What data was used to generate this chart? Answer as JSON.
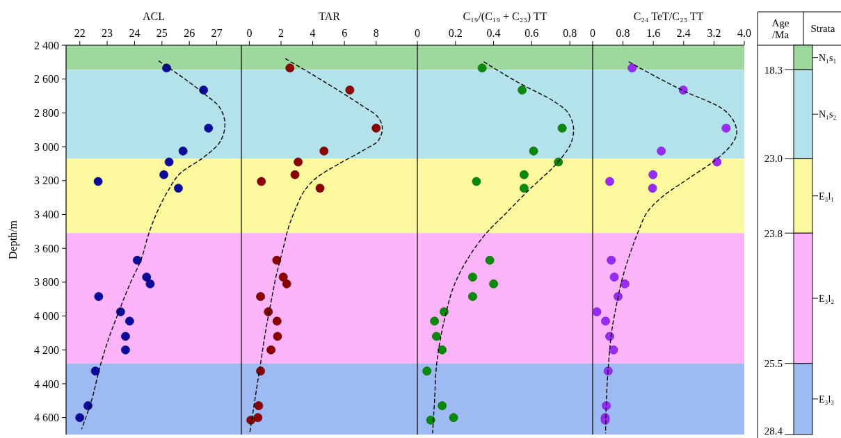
{
  "chart_data": [
    {
      "type": "scatter",
      "xlabel": "ACL",
      "ylabel": "Depth/m",
      "xlim": [
        21.5,
        27.9
      ],
      "xticks": [
        22,
        23,
        24,
        25,
        26,
        27
      ],
      "ylim": [
        4700,
        2400
      ],
      "yticks": [
        {
          "value": 2400,
          "label": "2 400"
        },
        {
          "value": 2600,
          "label": "2 600"
        },
        {
          "value": 2800,
          "label": "2 800"
        },
        {
          "value": 3000,
          "label": "3 000"
        },
        {
          "value": 3200,
          "label": "3 200"
        },
        {
          "value": 3400,
          "label": "3 400"
        },
        {
          "value": 3600,
          "label": "3 600"
        },
        {
          "value": 3800,
          "label": "3 800"
        },
        {
          "value": 4000,
          "label": "4 000"
        },
        {
          "value": 4200,
          "label": "4 200"
        },
        {
          "value": 4400,
          "label": "4 400"
        },
        {
          "value": 4600,
          "label": "4 600"
        }
      ],
      "bands": [
        {
          "axis": "y",
          "from": 2400,
          "to": 2545,
          "color": "#9fd89f"
        },
        {
          "axis": "y",
          "from": 2545,
          "to": 3070,
          "color": "#b4e2ea"
        },
        {
          "axis": "y",
          "from": 3070,
          "to": 3510,
          "color": "#fdf99f"
        },
        {
          "axis": "y",
          "from": 3510,
          "to": 4280,
          "color": "#fbb4f7"
        },
        {
          "axis": "y",
          "from": 4280,
          "to": 4700,
          "color": "#9dbaf2"
        }
      ],
      "series": [
        {
          "color": "#0c0c9c",
          "marker": "circle",
          "x": [
            25.17,
            26.52,
            26.7,
            25.77,
            25.26,
            25.07,
            22.67,
            25.6,
            24.1,
            24.44,
            24.57,
            22.69,
            23.49,
            23.82,
            23.67,
            23.67,
            22.57,
            22.3,
            22.0
          ],
          "values": [
            2535,
            2665,
            2890,
            3025,
            3090,
            3165,
            3205,
            3245,
            3670,
            3770,
            3810,
            3885,
            3975,
            4030,
            4120,
            4200,
            4325,
            4530,
            4600
          ]
        },
        {
          "type": "line",
          "color": "#000000",
          "line_style": "dashed",
          "x": [
            24.89,
            26.55,
            27.1,
            27.3,
            27.15,
            26.5,
            25.71,
            25.22,
            24.82,
            24.52,
            24.23,
            23.83,
            23.44,
            23.04,
            22.74,
            22.45,
            22.07
          ],
          "values": [
            2494,
            2688,
            2766,
            2868,
            2963,
            3065,
            3151,
            3261,
            3387,
            3513,
            3670,
            3811,
            3968,
            4141,
            4298,
            4487,
            4667
          ]
        }
      ]
    },
    {
      "type": "scatter",
      "xlabel": "TAR",
      "tick_labels": "x",
      "xlim": [
        -0.5,
        10.6
      ],
      "xticks": [
        0,
        2,
        4,
        6,
        8
      ],
      "ylim": [
        4700,
        2400
      ],
      "bands": [
        {
          "axis": "y",
          "from": 2400,
          "to": 2545,
          "color": "#9fd89f"
        },
        {
          "axis": "y",
          "from": 2545,
          "to": 3070,
          "color": "#b4e2ea"
        },
        {
          "axis": "y",
          "from": 3070,
          "to": 3510,
          "color": "#fdf99f"
        },
        {
          "axis": "y",
          "from": 3510,
          "to": 4280,
          "color": "#fbb4f7"
        },
        {
          "axis": "y",
          "from": 4280,
          "to": 4700,
          "color": "#9dbaf2"
        }
      ],
      "series": [
        {
          "color": "#8b0000",
          "marker": "circle",
          "x": [
            2.56,
            6.34,
            8.0,
            4.71,
            3.08,
            2.88,
            0.76,
            4.46,
            1.73,
            2.14,
            2.36,
            0.71,
            1.2,
            1.75,
            1.78,
            1.37,
            0.71,
            0.59,
            0.54,
            0.1
          ],
          "values": [
            2535,
            2665,
            2890,
            3025,
            3090,
            3165,
            3205,
            3245,
            3670,
            3770,
            3810,
            3885,
            3975,
            4030,
            4120,
            4200,
            4325,
            4530,
            4600,
            4615
          ]
        },
        {
          "type": "line",
          "color": "#000000",
          "line_style": "dashed",
          "x": [
            2.29,
            4.75,
            7.12,
            8.08,
            8.39,
            8.14,
            7.12,
            5.59,
            4.24,
            3.47,
            2.97,
            2.46,
            2.12,
            1.69,
            1.36,
            1.02,
            0.68,
            0.34,
            0.03
          ],
          "values": [
            2480,
            2617,
            2758,
            2821,
            2892,
            2963,
            3025,
            3104,
            3183,
            3261,
            3355,
            3481,
            3607,
            3764,
            3921,
            4094,
            4298,
            4502,
            4691
          ]
        }
      ]
    },
    {
      "type": "scatter",
      "xlabel": "C₁₉/(C₁₉ + C₂₃) TT",
      "tick_labels": "x",
      "xlim": [
        0,
        0.92
      ],
      "xticks": [
        0,
        0.2,
        0.4,
        0.6,
        0.8
      ],
      "ylim": [
        4700,
        2400
      ],
      "bands": [
        {
          "axis": "y",
          "from": 2400,
          "to": 2545,
          "color": "#9fd89f"
        },
        {
          "axis": "y",
          "from": 2545,
          "to": 3070,
          "color": "#b4e2ea"
        },
        {
          "axis": "y",
          "from": 3070,
          "to": 3510,
          "color": "#fdf99f"
        },
        {
          "axis": "y",
          "from": 3510,
          "to": 4280,
          "color": "#fbb4f7"
        },
        {
          "axis": "y",
          "from": 4280,
          "to": 4700,
          "color": "#9dbaf2"
        }
      ],
      "series": [
        {
          "color": "#0a8a0a",
          "marker": "circle",
          "x": [
            0.34,
            0.55,
            0.76,
            0.61,
            0.74,
            0.56,
            0.31,
            0.56,
            0.38,
            0.29,
            0.4,
            0.29,
            0.14,
            0.09,
            0.1,
            0.13,
            0.05,
            0.13,
            0.19,
            0.07
          ],
          "values": [
            2535,
            2665,
            2890,
            3025,
            3090,
            3165,
            3205,
            3245,
            3670,
            3770,
            3810,
            3885,
            3975,
            4030,
            4120,
            4200,
            4325,
            4530,
            4600,
            4615
          ]
        },
        {
          "type": "line",
          "color": "#000000",
          "line_style": "dashed",
          "x": [
            0.35,
            0.55,
            0.71,
            0.79,
            0.82,
            0.8,
            0.74,
            0.58,
            0.47,
            0.36,
            0.26,
            0.19,
            0.15,
            0.12,
            0.1,
            0.09,
            0.08
          ],
          "values": [
            2499,
            2633,
            2727,
            2798,
            2900,
            2994,
            3088,
            3261,
            3387,
            3513,
            3670,
            3827,
            3984,
            4141,
            4298,
            4502,
            4691
          ]
        }
      ]
    },
    {
      "type": "scatter",
      "xlabel": "C₂₄ TeT/C₂₃ TT",
      "tick_labels": "x",
      "xlim": [
        0,
        4
      ],
      "xticks": [
        0,
        {
          "value": 0.8,
          "label": "0.8"
        },
        {
          "value": 1.6,
          "label": "1.6"
        },
        {
          "value": 2.4,
          "label": "2.4"
        },
        {
          "value": 3.2,
          "label": "3.2"
        },
        {
          "value": 4,
          "label": "4.0"
        }
      ],
      "ylim": [
        4700,
        2400
      ],
      "bands": [
        {
          "axis": "y",
          "from": 2400,
          "to": 2545,
          "color": "#9fd89f"
        },
        {
          "axis": "y",
          "from": 2545,
          "to": 3070,
          "color": "#b4e2ea"
        },
        {
          "axis": "y",
          "from": 3070,
          "to": 3510,
          "color": "#fdf99f"
        },
        {
          "axis": "y",
          "from": 3510,
          "to": 4280,
          "color": "#fbb4f7"
        },
        {
          "axis": "y",
          "from": 4280,
          "to": 4700,
          "color": "#9dbaf2"
        }
      ],
      "series": [
        {
          "color": "#9a2bff",
          "marker": "circle",
          "x": [
            1.04,
            2.39,
            3.52,
            1.81,
            3.28,
            1.59,
            0.45,
            1.58,
            0.49,
            0.57,
            0.85,
            0.67,
            0.11,
            0.34,
            0.45,
            0.55,
            0.41,
            0.36,
            0.33,
            0.33
          ],
          "values": [
            2535,
            2665,
            2890,
            3025,
            3090,
            3165,
            3205,
            3245,
            3670,
            3770,
            3810,
            3885,
            3975,
            4030,
            4120,
            4200,
            4325,
            4530,
            4600,
            4615
          ]
        },
        {
          "type": "line",
          "color": "#000000",
          "line_style": "dashed",
          "x": [
            0.96,
            2.42,
            3.41,
            3.69,
            3.8,
            3.69,
            3.27,
            2.56,
            1.85,
            1.49,
            1.21,
            1.0,
            0.78,
            0.64,
            0.5,
            0.43,
            0.37,
            0.34
          ],
          "values": [
            2499,
            2672,
            2774,
            2837,
            2915,
            2978,
            3073,
            3183,
            3293,
            3371,
            3497,
            3623,
            3780,
            3921,
            4094,
            4251,
            4455,
            4691
          ]
        }
      ]
    },
    {
      "type": "other",
      "ylabel": "Age /Ma",
      "xlabel": "Strata",
      "categories": [
        "N₁s₁",
        "N₁s₂",
        "E₃l₁",
        "E₃l₂",
        "E₃l₃"
      ],
      "annotations": [
        "18.3",
        "23.0",
        "23.8",
        "25.5",
        "28.4"
      ]
    }
  ]
}
